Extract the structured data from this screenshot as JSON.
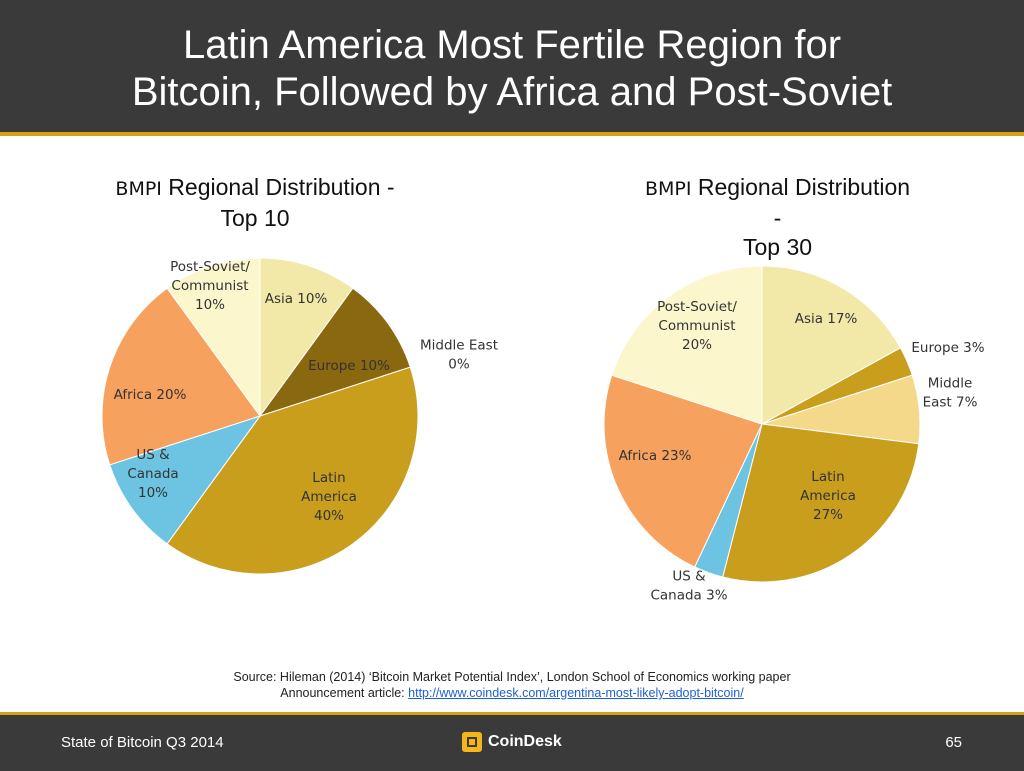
{
  "slide": {
    "title_line1": "Latin America Most Fertile Region for",
    "title_line2": "Bitcoin, Followed by Africa and Post-Soviet",
    "source_line1": "Source: Hileman (2014) ‘Bitcoin Market Potential Index’, London School of Economics working paper",
    "source_line2_prefix": "Announcement article: ",
    "source_link": "http://www.coindesk.com/argentina-most-likely-adopt-bitcoin/",
    "footer_left": "State of Bitcoin Q3 2014",
    "footer_logo": "CoinDesk",
    "page_number": "65"
  },
  "chart_data": [
    {
      "type": "pie",
      "title_prefix": "BMPI",
      "title_line1": "Regional Distribution -",
      "title_line2": "Top 10",
      "slices": [
        {
          "name": "Asia",
          "value": 10,
          "label_lines": [
            "Asia 10%"
          ],
          "color": "#f2e9a8"
        },
        {
          "name": "Middle East",
          "value": 0,
          "label_lines": [
            "Middle East",
            "0%"
          ],
          "color": "#e0b84a"
        },
        {
          "name": "Europe",
          "value": 10,
          "label_lines": [
            "Europe 10%"
          ],
          "color": "#8a6810"
        },
        {
          "name": "Latin America",
          "value": 40,
          "label_lines": [
            "Latin",
            "America",
            "40%"
          ],
          "color": "#c99e1c"
        },
        {
          "name": "US & Canada",
          "value": 10,
          "label_lines": [
            "US &",
            "Canada",
            "10%"
          ],
          "color": "#6cc4e2"
        },
        {
          "name": "Africa",
          "value": 20,
          "label_lines": [
            "Africa 20%"
          ],
          "color": "#f6a15e"
        },
        {
          "name": "Post-Soviet/ Communist",
          "value": 10,
          "label_lines": [
            "Post-Soviet/",
            "Communist",
            "10%"
          ],
          "color": "#fbf6cc"
        }
      ]
    },
    {
      "type": "pie",
      "title_prefix": "BMPI",
      "title_line1": "Regional Distribution",
      "title_line2": "-",
      "title_line3": "Top 30",
      "slices": [
        {
          "name": "Asia",
          "value": 17,
          "label_lines": [
            "Asia 17%"
          ],
          "color": "#f2e9a8"
        },
        {
          "name": "Europe",
          "value": 3,
          "label_lines": [
            "Europe 3%"
          ],
          "color": "#c99e1c"
        },
        {
          "name": "Middle East",
          "value": 7,
          "label_lines": [
            "Middle",
            "East 7%"
          ],
          "color": "#f5d98a"
        },
        {
          "name": "Latin America",
          "value": 27,
          "label_lines": [
            "Latin",
            "America",
            "27%"
          ],
          "color": "#c99e1c"
        },
        {
          "name": "US & Canada",
          "value": 3,
          "label_lines": [
            "US &",
            "Canada 3%"
          ],
          "color": "#6cc4e2"
        },
        {
          "name": "Africa",
          "value": 23,
          "label_lines": [
            "Africa 23%"
          ],
          "color": "#f6a15e"
        },
        {
          "name": "Post-Soviet/ Communist",
          "value": 20,
          "label_lines": [
            "Post-Soviet/",
            "Communist",
            "20%"
          ],
          "color": "#fbf6cc"
        }
      ]
    }
  ]
}
